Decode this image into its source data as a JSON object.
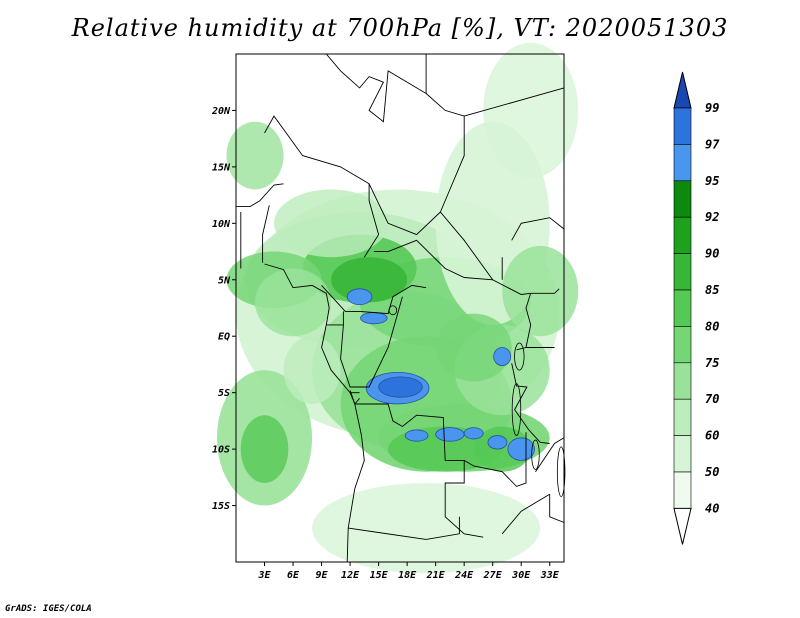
{
  "title": "Relative humidity at 700hPa [%], VT: 2020051303",
  "credit": "GrADS: IGES/COLA",
  "map": {
    "lon_range": [
      0,
      34.5
    ],
    "lat_range": [
      -20,
      25
    ],
    "lon_ticks": [
      "3E",
      "6E",
      "9E",
      "12E",
      "15E",
      "18E",
      "21E",
      "24E",
      "27E",
      "30E",
      "33E"
    ],
    "lat_ticks": [
      "20N",
      "15N",
      "10N",
      "5N",
      "EQ",
      "5S",
      "10S",
      "15S"
    ]
  },
  "colorbar": {
    "levels": [
      "99",
      "97",
      "95",
      "92",
      "90",
      "85",
      "80",
      "75",
      "70",
      "60",
      "50",
      "40"
    ],
    "colors": [
      "#1f5fd0",
      "#2c74dc",
      "#4a95ee",
      "#0d8a0d",
      "#1ea21e",
      "#38b638",
      "#55c955",
      "#76d676",
      "#9ae29a",
      "#bdecbd",
      "#d7f4d7",
      "#eefbee"
    ],
    "top_color": "#1a47b0",
    "bottom_color": "#ffffff"
  },
  "colors": {
    "border": "#000000",
    "background": "#ffffff"
  }
}
